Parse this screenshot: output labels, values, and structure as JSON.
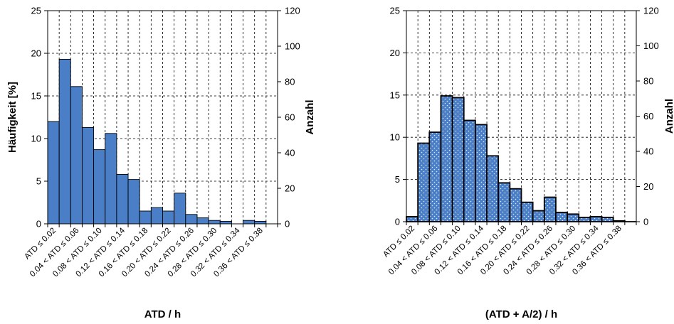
{
  "chart_data": [
    {
      "type": "bar",
      "xlabel": "ATD / h",
      "ylabel": "Häufigkeit [%]",
      "y2label": "Anzahl",
      "ylim": [
        0,
        25
      ],
      "y2lim": [
        0,
        120
      ],
      "yticks": [
        "0",
        "5",
        "10",
        "15",
        "20",
        "25"
      ],
      "y2ticks": [
        "0",
        "20",
        "40",
        "60",
        "80",
        "100",
        "120"
      ],
      "grid": "dashed",
      "fill_color": "#4a7ec6",
      "pattern": "solid",
      "categories": [
        "",
        "",
        "",
        "",
        "",
        "",
        "",
        "",
        "",
        "",
        "",
        "",
        "",
        "",
        "",
        "",
        "",
        "",
        "",
        ""
      ],
      "category_labels": [
        "ATD ≤ 0.02",
        "0.04 < ATD ≤ 0.06",
        "0.08 < ATD ≤ 0.10",
        "0.12 < ATD ≤ 0.14",
        "0.16 < ATD ≤ 0.18",
        "0.20 < ATD ≤ 0.22",
        "0.24 < ATD ≤ 0.26",
        "0.28 < ATD ≤ 0.30",
        "0.32 < ATD ≤ 0.34",
        "0.36 < ATD ≤ 0.38"
      ],
      "values": [
        12.0,
        19.3,
        16.1,
        11.3,
        8.7,
        10.6,
        5.8,
        5.2,
        1.5,
        1.9,
        1.5,
        3.6,
        1.1,
        0.7,
        0.4,
        0.3,
        0.0,
        0.4,
        0.3,
        0.0
      ]
    },
    {
      "type": "bar",
      "xlabel": "(ATD + A/2) / h",
      "ylabel": "",
      "y2label": "Anzahl",
      "ylim": [
        0,
        25
      ],
      "y2lim": [
        0,
        120
      ],
      "yticks": [
        "0",
        "5",
        "10",
        "15",
        "20",
        "25"
      ],
      "y2ticks": [
        "0",
        "20",
        "40",
        "60",
        "80",
        "100",
        "120"
      ],
      "grid": "dashed",
      "fill_color": "#4a7ec6",
      "pattern": "dotted",
      "categories": [
        "",
        "",
        "",
        "",
        "",
        "",
        "",
        "",
        "",
        "",
        "",
        "",
        "",
        "",
        "",
        "",
        "",
        "",
        "",
        ""
      ],
      "category_labels": [
        "ATD ≤ 0.02",
        "0.04 < ATD ≤ 0.06",
        "0.08 < ATD ≤ 0.10",
        "0.12 < ATD ≤ 0.14",
        "0.16 < ATD ≤ 0.18",
        "0.20 < ATD ≤ 0.22",
        "0.24 < ATD ≤ 0.26",
        "0.28 < ATD ≤ 0.30",
        "0.32 < ATD ≤ 0.34",
        "0.36 < ATD ≤ 0.38"
      ],
      "values": [
        0.6,
        9.3,
        10.6,
        14.9,
        14.7,
        12.0,
        11.5,
        7.8,
        4.6,
        3.9,
        2.3,
        1.3,
        2.9,
        1.1,
        0.9,
        0.5,
        0.6,
        0.5,
        0.1,
        0.0
      ]
    }
  ]
}
